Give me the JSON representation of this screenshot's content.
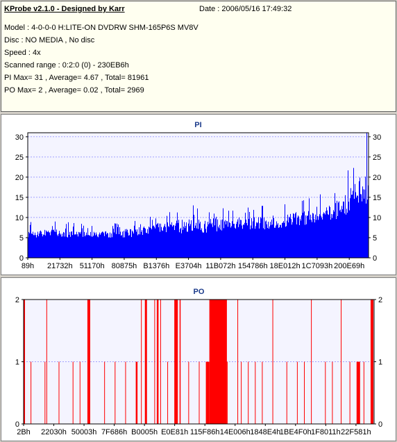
{
  "info": {
    "title": "KProbe v2.1.0 - Designed by Karr",
    "date": "Date : 2006/05/16 17:49:32",
    "model": "Model : 4-0-0-0 H:LITE-ON DVDRW SHM-165P6S MV8V",
    "disc": "Disc : NO MEDIA , No disc",
    "speed": "Speed : 4x",
    "scanned_range": "Scanned range : 0:2:0 (0) - 230EB6h",
    "pi_stats": "PI Max= 31 , Average= 4.67 , Total= 81961",
    "po_stats": "PO Max= 2 , Average= 0.02 , Total= 2969"
  },
  "colors": {
    "pi_bars": "#0000ff",
    "po_bars": "#ff0000",
    "plot_bg": "#f4f4ff",
    "grid": "#a0a0ff",
    "title": "#1a3a8a"
  },
  "chart_data": [
    {
      "type": "bar",
      "title": "PI",
      "ylim": [
        0,
        31
      ],
      "yticks": [
        0,
        5,
        10,
        15,
        20,
        25,
        30
      ],
      "xtick_labels": [
        "89h",
        "21732h",
        "51170h",
        "80875h",
        "B1376h",
        "E3704h",
        "11B072h",
        "154786h",
        "18E012h",
        "1C7093h",
        "200E69h"
      ],
      "grid": true,
      "mirror_y_axis": true,
      "profile": [
        {
          "pos": 0.0,
          "base": 5,
          "peak": 9
        },
        {
          "pos": 0.1,
          "base": 5,
          "peak": 9
        },
        {
          "pos": 0.2,
          "base": 5,
          "peak": 8
        },
        {
          "pos": 0.3,
          "base": 5,
          "peak": 9
        },
        {
          "pos": 0.4,
          "base": 6,
          "peak": 11
        },
        {
          "pos": 0.45,
          "base": 6,
          "peak": 13
        },
        {
          "pos": 0.5,
          "base": 6,
          "peak": 13
        },
        {
          "pos": 0.6,
          "base": 7,
          "peak": 12
        },
        {
          "pos": 0.7,
          "base": 7,
          "peak": 13
        },
        {
          "pos": 0.8,
          "base": 8,
          "peak": 14
        },
        {
          "pos": 0.9,
          "base": 9,
          "peak": 17
        },
        {
          "pos": 0.95,
          "base": 11,
          "peak": 23
        },
        {
          "pos": 1.0,
          "base": 13,
          "peak": 31
        }
      ],
      "max": 31,
      "average": 4.67
    },
    {
      "type": "bar",
      "title": "PO",
      "ylim": [
        0,
        2
      ],
      "yticks": [
        0,
        1,
        2
      ],
      "xtick_labels": [
        "2Bh",
        "22030h",
        "50003h",
        "7F686h",
        "B0005h",
        "E0E81h",
        "115F86h",
        "14E006h",
        "1848E4h",
        "1BE4F0h",
        "1F8011h",
        "22F581h"
      ],
      "grid": true,
      "mirror_y_axis": true,
      "value_two_ranges": [
        [
          0.0,
          0.004
        ],
        [
          0.065,
          0.067
        ],
        [
          0.182,
          0.19
        ],
        [
          0.335,
          0.337
        ],
        [
          0.346,
          0.352
        ],
        [
          0.373,
          0.375
        ],
        [
          0.38,
          0.385
        ],
        [
          0.39,
          0.392
        ],
        [
          0.43,
          0.44
        ],
        [
          0.445,
          0.448
        ],
        [
          0.53,
          0.58
        ],
        [
          0.61,
          0.612
        ],
        [
          0.71,
          0.712
        ],
        [
          0.82,
          0.822
        ],
        [
          0.905,
          0.907
        ],
        [
          0.99,
          0.998
        ]
      ],
      "value_one_ranges": [
        [
          0.02,
          0.022
        ],
        [
          0.06,
          0.061
        ],
        [
          0.1,
          0.101
        ],
        [
          0.14,
          0.142
        ],
        [
          0.16,
          0.161
        ],
        [
          0.23,
          0.232
        ],
        [
          0.26,
          0.262
        ],
        [
          0.29,
          0.291
        ],
        [
          0.32,
          0.325
        ],
        [
          0.41,
          0.412
        ],
        [
          0.47,
          0.472
        ],
        [
          0.5,
          0.502
        ],
        [
          0.52,
          0.53
        ],
        [
          0.58,
          0.582
        ],
        [
          0.62,
          0.621
        ],
        [
          0.64,
          0.642
        ],
        [
          0.66,
          0.661
        ],
        [
          0.68,
          0.682
        ],
        [
          0.75,
          0.752
        ],
        [
          0.78,
          0.781
        ],
        [
          0.8,
          0.801
        ],
        [
          0.86,
          0.861
        ],
        [
          0.88,
          0.881
        ],
        [
          0.93,
          0.932
        ],
        [
          0.95,
          0.96
        ],
        [
          0.97,
          0.972
        ]
      ],
      "max": 2,
      "average": 0.02
    }
  ]
}
